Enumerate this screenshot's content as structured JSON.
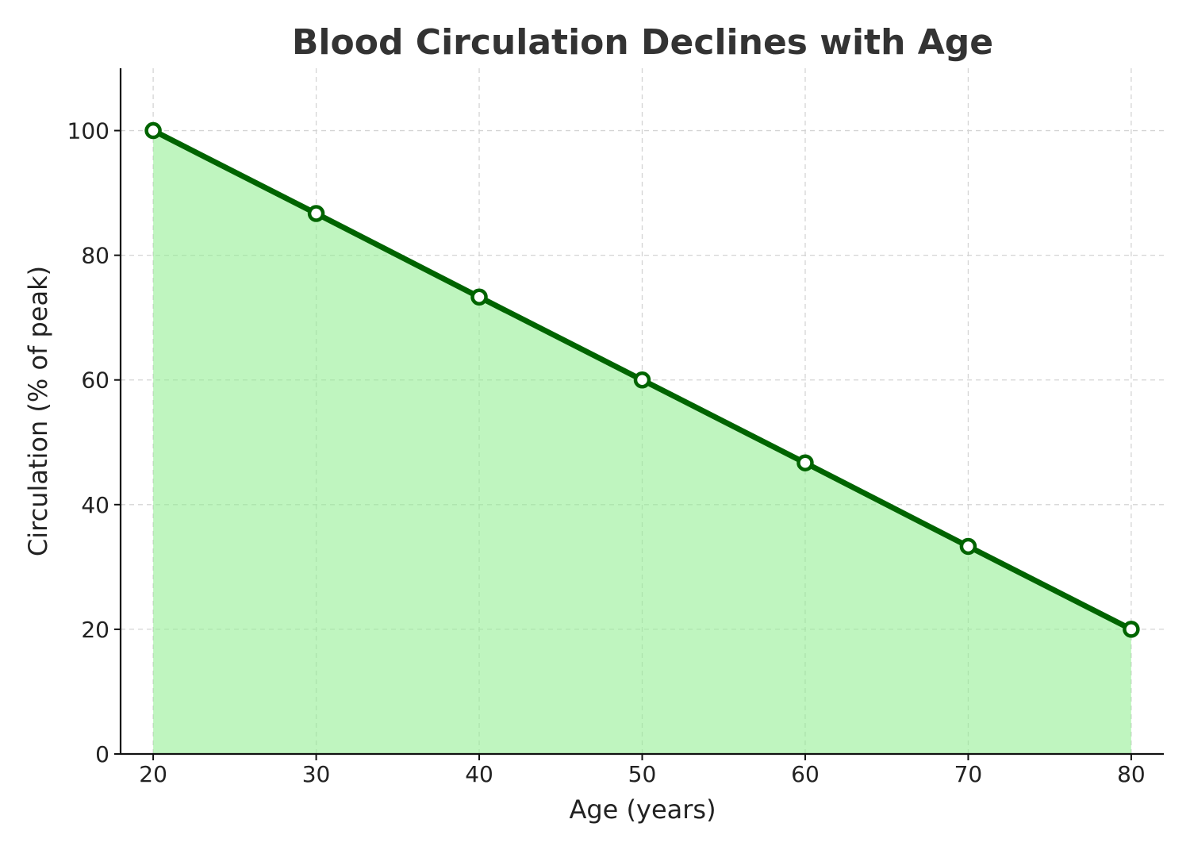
{
  "chart_data": {
    "type": "area",
    "title": "Blood Circulation Declines with Age",
    "xlabel": "Age (years)",
    "ylabel": "Circulation (% of peak)",
    "x": [
      20,
      30,
      40,
      50,
      60,
      70,
      80
    ],
    "y": [
      100,
      86.7,
      73.3,
      60,
      46.7,
      33.3,
      20
    ],
    "xticks": [
      20,
      30,
      40,
      50,
      60,
      70,
      80
    ],
    "yticks": [
      0,
      20,
      40,
      60,
      80,
      100
    ],
    "xlim": [
      18,
      82
    ],
    "ylim": [
      0,
      110
    ],
    "grid": true,
    "colors": {
      "line": "#006400",
      "fill": "#90ee90",
      "marker_face": "#ffffff"
    }
  }
}
